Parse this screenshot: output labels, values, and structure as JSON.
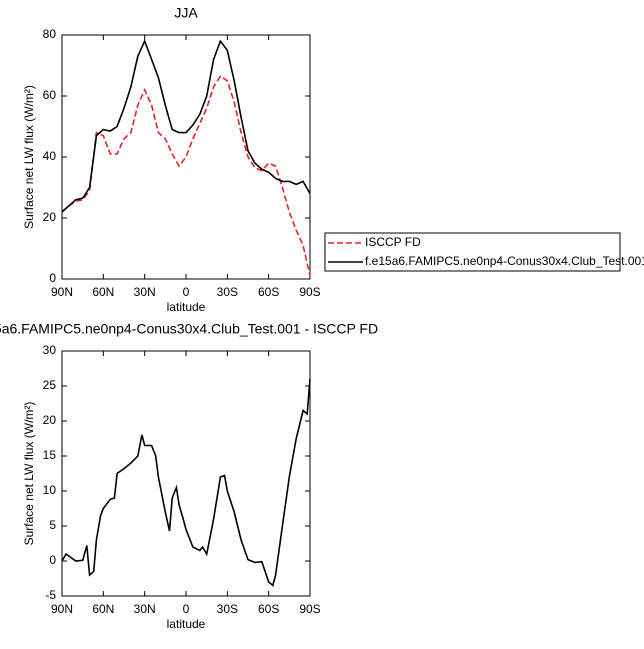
{
  "chart_data": [
    {
      "type": "line",
      "title": "JJA",
      "xlabel": "latitude",
      "ylabel": "Surface net LW flux (W/m²)",
      "x": [
        90,
        85,
        80,
        75,
        70,
        65,
        60,
        55,
        50,
        45,
        40,
        35,
        30,
        25,
        20,
        15,
        10,
        5,
        0,
        -5,
        -10,
        -15,
        -20,
        -25,
        -30,
        -35,
        -40,
        -45,
        -50,
        -55,
        -60,
        -65,
        -70,
        -75,
        -80,
        -85,
        -90
      ],
      "xlim": [
        90,
        -90
      ],
      "xticks": [
        {
          "value": 90,
          "label": "90N"
        },
        {
          "value": 60,
          "label": "60N"
        },
        {
          "value": 30,
          "label": "30N"
        },
        0,
        {
          "value": -30,
          "label": "30S"
        },
        {
          "value": -60,
          "label": "60S"
        },
        {
          "value": -90,
          "label": "90S"
        }
      ],
      "ylim": [
        0,
        80
      ],
      "yticks": [
        0,
        20,
        40,
        60,
        80
      ],
      "legend": "right",
      "series": [
        {
          "name": "ISCCP FD",
          "color": "#e8202a",
          "dashed": true,
          "values": [
            22,
            24,
            25.5,
            26,
            29,
            48,
            47,
            41,
            41,
            46,
            48,
            57,
            62,
            57,
            48,
            46,
            41,
            37,
            40,
            46,
            51,
            56,
            63,
            66.5,
            65,
            58,
            48,
            40,
            36.5,
            35.5,
            38,
            37,
            30,
            22,
            16,
            11,
            1
          ]
        },
        {
          "name": "f.e15a6.FAMIPC5.ne0np4-Conus30x4.Club_Test.001",
          "color": "#000000",
          "dashed": false,
          "values": [
            22,
            24,
            26,
            26.5,
            30,
            47,
            49,
            48.5,
            50,
            56,
            63,
            73,
            78,
            72,
            66,
            57,
            49,
            48,
            48,
            50.5,
            54,
            60,
            72,
            78,
            75,
            65,
            53,
            42,
            38,
            36,
            35,
            33,
            32,
            32,
            31,
            32,
            28
          ]
        }
      ]
    },
    {
      "type": "line",
      "title": "5a6.FAMIPC5.ne0np4-Conus30x4.Club_Test.001 - ISCCP FD",
      "xlabel": "latitude",
      "ylabel": "Surface net LW flux (W/m²)",
      "x": [
        90,
        87,
        85,
        80,
        75,
        72,
        70,
        67,
        65,
        62,
        60,
        55,
        52,
        50,
        45,
        40,
        35,
        32,
        30,
        25,
        22,
        20,
        15,
        12,
        10,
        7,
        5,
        2,
        0,
        -5,
        -10,
        -12,
        -15,
        -20,
        -25,
        -28,
        -30,
        -35,
        -40,
        -45,
        -50,
        -55,
        -60,
        -63,
        -65,
        -70,
        -75,
        -80,
        -85,
        -88,
        -90
      ],
      "xlim": [
        90,
        -90
      ],
      "xticks": [
        {
          "value": 90,
          "label": "90N"
        },
        {
          "value": 60,
          "label": "60N"
        },
        {
          "value": 30,
          "label": "30N"
        },
        0,
        {
          "value": -30,
          "label": "30S"
        },
        {
          "value": -60,
          "label": "60S"
        },
        {
          "value": -90,
          "label": "90S"
        }
      ],
      "ylim": [
        -5,
        30
      ],
      "yticks": [
        -5,
        0,
        5,
        10,
        15,
        20,
        25,
        30
      ],
      "series": [
        {
          "color": "#000000",
          "dashed": false,
          "values": [
            0,
            1,
            0.7,
            0,
            0.1,
            2.2,
            -2,
            -1.5,
            3,
            6.5,
            7.5,
            8.8,
            9,
            12.5,
            13.2,
            14,
            15,
            18,
            16.5,
            16.5,
            15,
            12,
            7,
            4.3,
            9,
            10.5,
            8,
            6,
            4.5,
            2,
            1.5,
            2,
            1,
            6,
            12,
            12.2,
            10,
            7,
            3,
            0.2,
            -0.2,
            -0.1,
            -3,
            -3.5,
            -2,
            5,
            12,
            17.5,
            21.5,
            21,
            26
          ]
        }
      ]
    }
  ]
}
